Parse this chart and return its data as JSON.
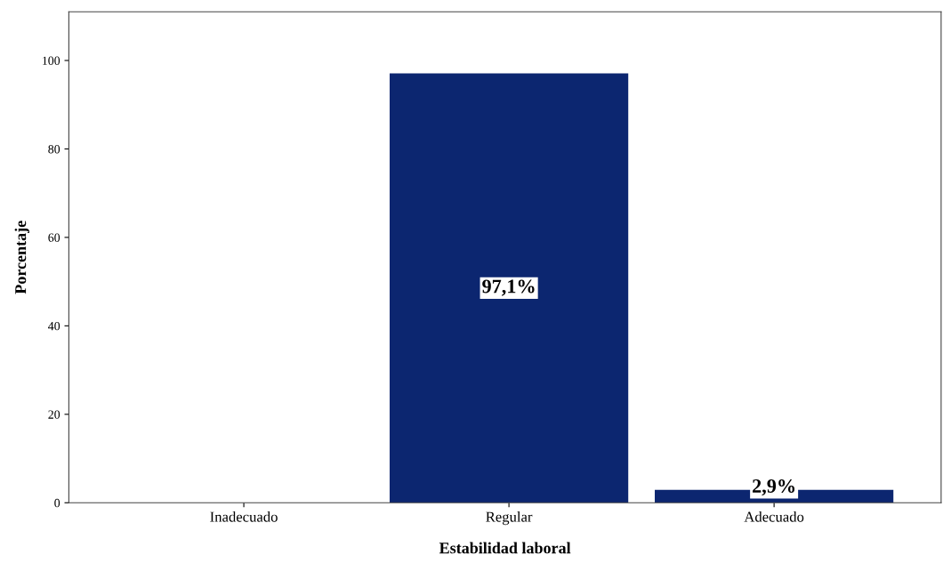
{
  "chart_data": {
    "type": "bar",
    "xlabel": "Estabilidad laboral",
    "ylabel": "Porcentaje",
    "categories": [
      "Inadecuado",
      "Regular",
      "Adecuado"
    ],
    "values": [
      0,
      97.1,
      2.9
    ],
    "value_labels": [
      null,
      "97,1%",
      "2,9%"
    ],
    "color": "#0c2670",
    "ylim": [
      0,
      111
    ],
    "yticks": [
      0,
      20,
      40,
      60,
      80,
      100
    ],
    "grid": false,
    "legend": false
  }
}
